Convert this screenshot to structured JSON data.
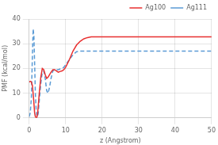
{
  "chart_data": {
    "type": "line",
    "xlabel": "z (Angstrom)",
    "ylabel": "PMF (kcal/mol)",
    "xlim": [
      0,
      50
    ],
    "ylim": [
      0,
      40
    ],
    "xticks": [
      0,
      10,
      20,
      30,
      40,
      50
    ],
    "yticks": [
      0,
      10,
      20,
      30,
      40
    ],
    "grid": true,
    "legend": "upper right",
    "series": [
      {
        "name": "Ag100",
        "color": "#e83030",
        "line_style": "solid",
        "x": [
          0.0,
          0.3,
          0.6,
          0.9,
          1.2,
          1.5,
          1.7,
          1.9,
          2.1,
          2.3,
          2.5,
          2.8,
          3.2,
          3.6,
          4.0,
          4.4,
          4.8,
          5.2,
          5.6,
          6.0,
          6.5,
          7.0,
          7.5,
          8.0,
          8.5,
          9.0,
          9.5,
          10.0,
          11.0,
          12.0,
          13.0,
          14.0,
          15.0,
          16.0,
          17.0,
          18.0,
          19.0,
          20.0,
          21.0,
          22.0,
          25.0,
          30.0,
          35.0,
          40.0,
          45.0,
          50.0
        ],
        "values": [
          14.5,
          14.8,
          14.6,
          13.0,
          8.0,
          2.0,
          0.5,
          0.1,
          0.2,
          1.5,
          5.0,
          10.5,
          16.5,
          20.0,
          19.5,
          17.5,
          16.0,
          16.5,
          17.5,
          18.5,
          19.5,
          19.5,
          19.0,
          18.5,
          18.8,
          19.0,
          19.5,
          20.5,
          23.5,
          27.0,
          29.5,
          31.0,
          32.0,
          32.5,
          32.8,
          32.8,
          32.8,
          32.8,
          32.8,
          32.8,
          32.8,
          32.8,
          32.8,
          32.8,
          32.8,
          32.8
        ]
      },
      {
        "name": "Ag111",
        "color": "#5b9bd5",
        "line_style": "dashed",
        "x": [
          0.0,
          0.3,
          0.6,
          0.9,
          1.1,
          1.3,
          1.5,
          1.7,
          1.9,
          2.1,
          2.3,
          2.5,
          2.8,
          3.2,
          3.6,
          4.0,
          4.4,
          4.8,
          5.2,
          5.6,
          6.0,
          6.5,
          7.0,
          7.5,
          8.0,
          8.5,
          9.0,
          9.5,
          10.0,
          11.0,
          12.0,
          13.0,
          14.0,
          15.0,
          16.0,
          17.0,
          18.0,
          19.0,
          20.0,
          21.0,
          22.0,
          25.0,
          30.0,
          35.0,
          40.0,
          45.0,
          50.0
        ],
        "values": [
          0.5,
          2.0,
          8.0,
          26.0,
          36.0,
          33.0,
          22.0,
          10.0,
          3.5,
          1.0,
          0.5,
          2.0,
          7.5,
          14.0,
          18.5,
          19.0,
          16.0,
          11.0,
          10.0,
          12.5,
          16.0,
          19.0,
          19.5,
          19.5,
          19.5,
          19.8,
          20.0,
          20.5,
          21.5,
          23.5,
          25.5,
          26.8,
          27.0,
          27.0,
          27.0,
          27.0,
          27.0,
          27.0,
          27.0,
          27.0,
          27.0,
          27.0,
          27.0,
          27.0,
          27.0,
          27.0,
          27.0
        ]
      }
    ]
  }
}
